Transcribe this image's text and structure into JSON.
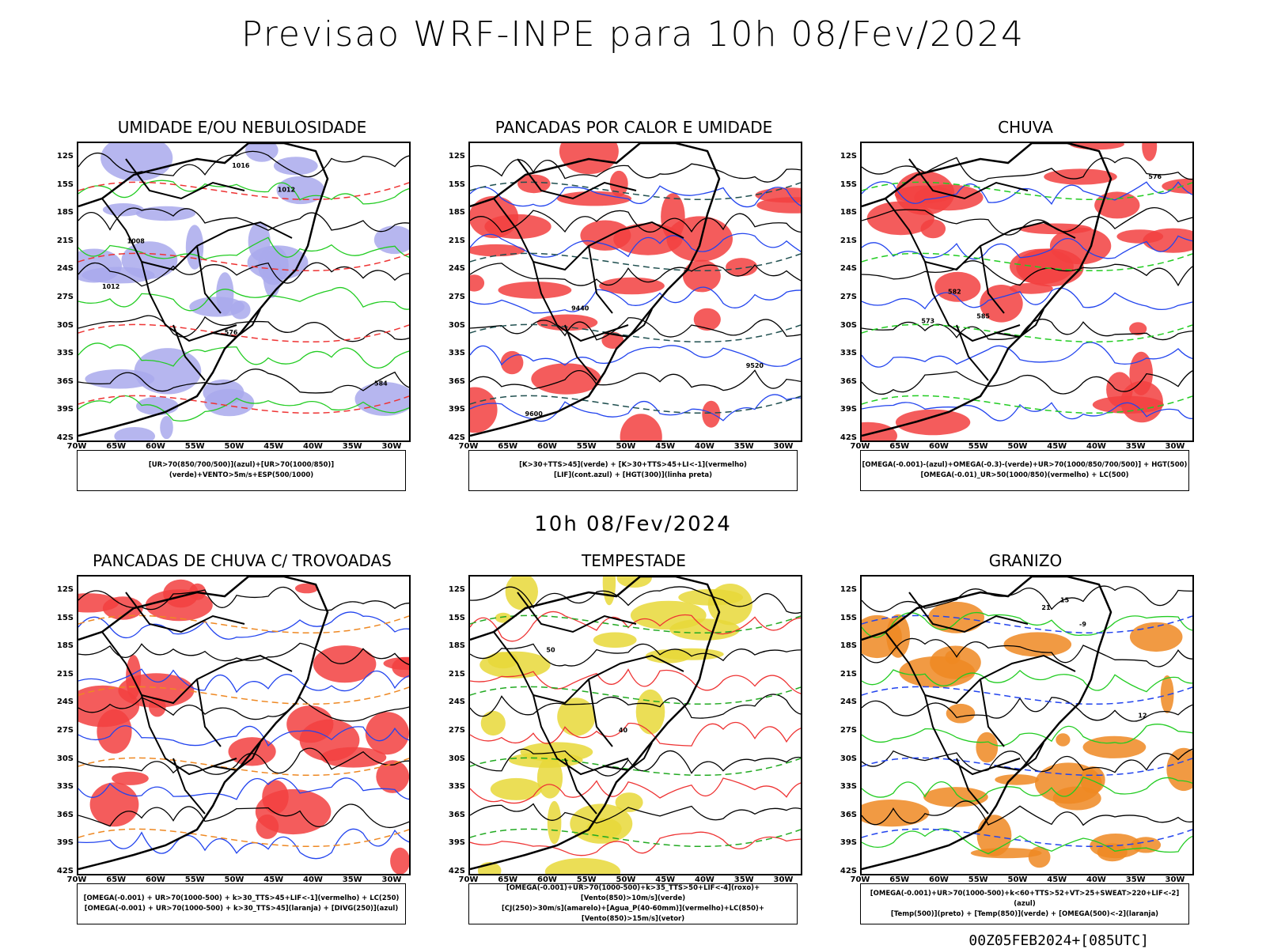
{
  "main_title": "Previsao WRF-INPE  para 10h 08/Fev/2024",
  "sub_title": "10h 08/Fev/2024",
  "footer": "00Z05FEB2024+[085UTC]",
  "lat_ticks": [
    "12S",
    "15S",
    "18S",
    "21S",
    "24S",
    "27S",
    "30S",
    "33S",
    "36S",
    "39S",
    "42S"
  ],
  "lon_ticks": [
    "70W",
    "65W",
    "60W",
    "55W",
    "50W",
    "45W",
    "40W",
    "35W",
    "30W"
  ],
  "panels": [
    {
      "title": "UMIDADE E/OU NEBULOSIDADE",
      "legend": [
        "[UR>70(850/700/500)](azul)+[UR>70(1000/850)](verde)+VENTO>5m/s+ESP(500/1000)"
      ],
      "colors": {
        "fill": "#a9a9ec",
        "contour": "#22cc22",
        "dash": "#ee3333"
      },
      "labels": [
        "1012",
        "1016",
        "1012",
        "1008",
        "576",
        "584"
      ]
    },
    {
      "title": "PANCADAS POR CALOR E UMIDADE",
      "legend": [
        "[K>30+TTS>45](verde) + [K>30+TTS>45+LI<-1](vermelho)",
        "[LIF](cont.azul) + [HGT(300)](linha preta)"
      ],
      "colors": {
        "fill": "#f24040",
        "contour": "#2244ee",
        "dash": "#1f4f4f"
      },
      "labels": [
        "9600",
        "9520",
        "9440"
      ]
    },
    {
      "title": "CHUVA",
      "legend": [
        "[OMEGA(-0.001)-(azul)+OMEGA(-0.3)-(verde)+UR>70(1000/850/700/500)] + HGT(500)",
        "[OMEGA(-0.01)_UR>50(1000/850)(vermelho) + LC(500)"
      ],
      "colors": {
        "fill": "#f24040",
        "contour": "#2244ee",
        "dash": "#22cc22"
      },
      "labels": [
        "582",
        "585",
        "576",
        "573"
      ]
    },
    {
      "title": "PANCADAS DE CHUVA C/ TROVOADAS",
      "legend": [
        "[OMEGA(-0.001) + UR>70(1000-500) + k>30_TTS>45+LIF<-1](vermelho) + LC(250)",
        "[OMEGA(-0.001) + UR>70(1000-500) + k>30_TTS>45](laranja) + [DIVG(250)](azul)"
      ],
      "colors": {
        "fill": "#f24040",
        "contour": "#2244ee",
        "dash": "#ee8822"
      },
      "labels": []
    },
    {
      "title": "TEMPESTADE",
      "legend": [
        "[OMEGA(-0.001)+UR>70(1000-500)+k>35_TTS>50+LIF<-4](roxo)+[Vento(850)>10m/s](verde)",
        "[CJ(250)>30m/s](amarelo)+[Agua_P(40-60mm)](vermelho)+LC(850)+[Vento(850)>15m/s](vetor)"
      ],
      "colors": {
        "fill": "#e8d838",
        "contour": "#ee3333",
        "dash": "#22aa22"
      },
      "labels": [
        "40",
        "50"
      ]
    },
    {
      "title": "GRANIZO",
      "legend": [
        "[OMEGA(-0.001)+UR>70(1000-500)+k<60+TTS>52+VT>25+SWEAT>220+LIF<-2](azul)",
        "[Temp(500)](preto) + [Temp(850)](verde) + [OMEGA(500)<-2](laranja)"
      ],
      "colors": {
        "fill": "#ee8822",
        "contour": "#22cc22",
        "dash": "#2244ee"
      },
      "labels": [
        "21",
        "15",
        "12",
        "-9"
      ]
    }
  ]
}
